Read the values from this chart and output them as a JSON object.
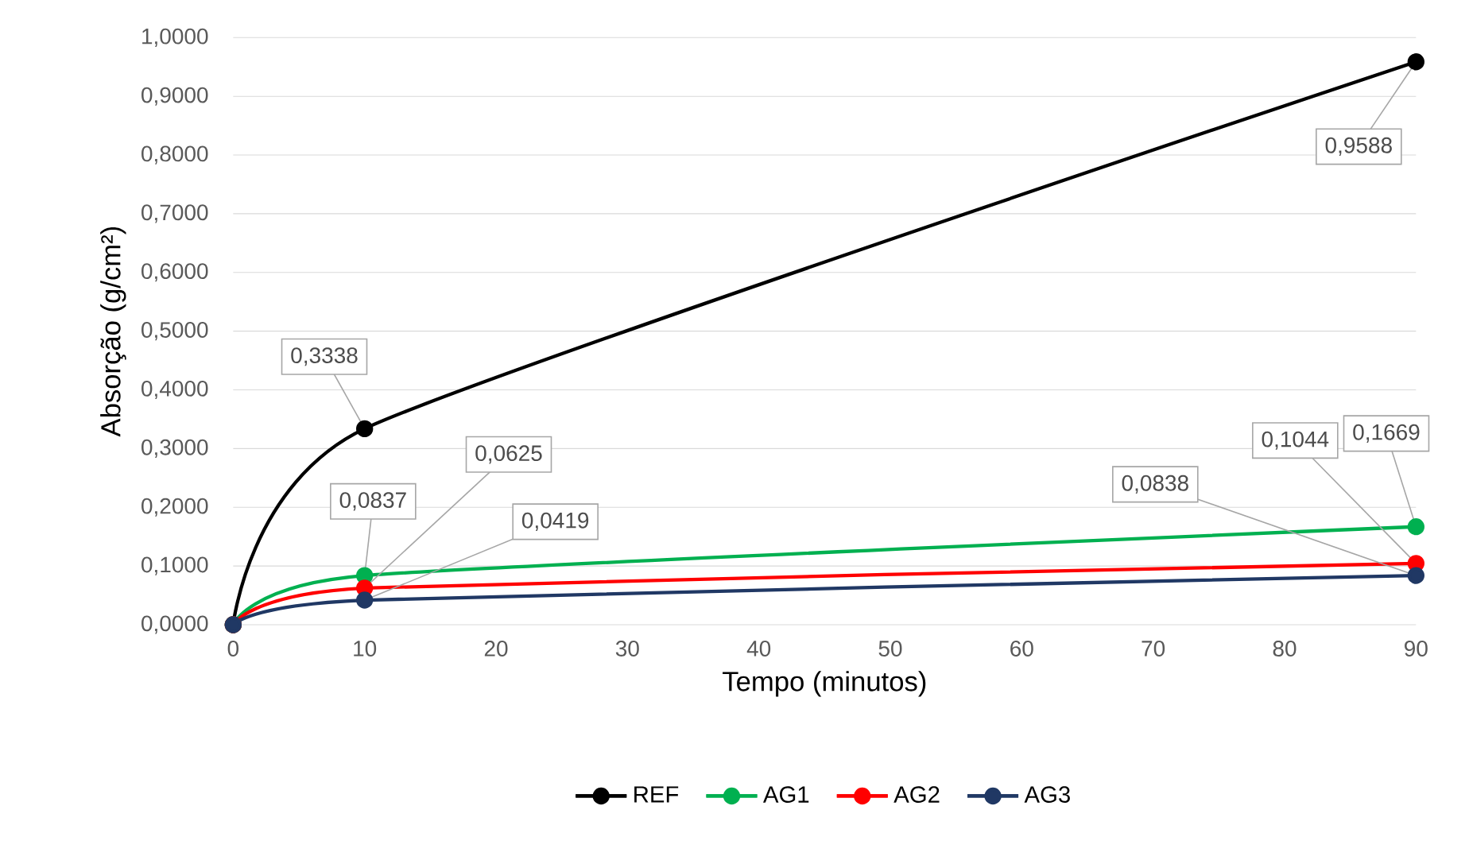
{
  "chart_data": {
    "type": "line",
    "xlabel": "Tempo (minutos)",
    "ylabel": "Absorção (g/cm²)",
    "x": [
      0,
      10,
      90
    ],
    "series": [
      {
        "name": "REF",
        "color": "#000000",
        "values": [
          0,
          0.3338,
          0.9588
        ],
        "value_labels": [
          null,
          "0,3338",
          "0,9588"
        ]
      },
      {
        "name": "AG1",
        "color": "#00b050",
        "values": [
          0,
          0.0837,
          0.1669
        ],
        "value_labels": [
          null,
          "0,0837",
          "0,1669"
        ]
      },
      {
        "name": "AG2",
        "color": "#ff0000",
        "values": [
          0,
          0.0625,
          0.1044
        ],
        "value_labels": [
          null,
          "0,0625",
          "0,1044"
        ]
      },
      {
        "name": "AG3",
        "color": "#203864",
        "values": [
          0,
          0.0419,
          0.0838
        ],
        "value_labels": [
          null,
          "0,0419",
          "0,0838"
        ]
      }
    ],
    "xlim": [
      0,
      90
    ],
    "xticks": [
      0,
      10,
      20,
      30,
      40,
      50,
      60,
      70,
      80,
      90
    ],
    "ylim": [
      0,
      1
    ],
    "yticks": [
      {
        "value": 0,
        "label": "0,0000"
      },
      {
        "value": 0.1,
        "label": "0,1000"
      },
      {
        "value": 0.2,
        "label": "0,2000"
      },
      {
        "value": 0.3,
        "label": "0,3000"
      },
      {
        "value": 0.4,
        "label": "0,4000"
      },
      {
        "value": 0.5,
        "label": "0,5000"
      },
      {
        "value": 0.6,
        "label": "0,6000"
      },
      {
        "value": 0.7,
        "label": "0,7000"
      },
      {
        "value": 0.8,
        "label": "0,8000"
      },
      {
        "value": 0.9,
        "label": "0,9000"
      },
      {
        "value": 1,
        "label": "1,0000"
      }
    ],
    "grid": "y",
    "legend": "bottom",
    "marker": "circle",
    "line_style": "solid"
  }
}
